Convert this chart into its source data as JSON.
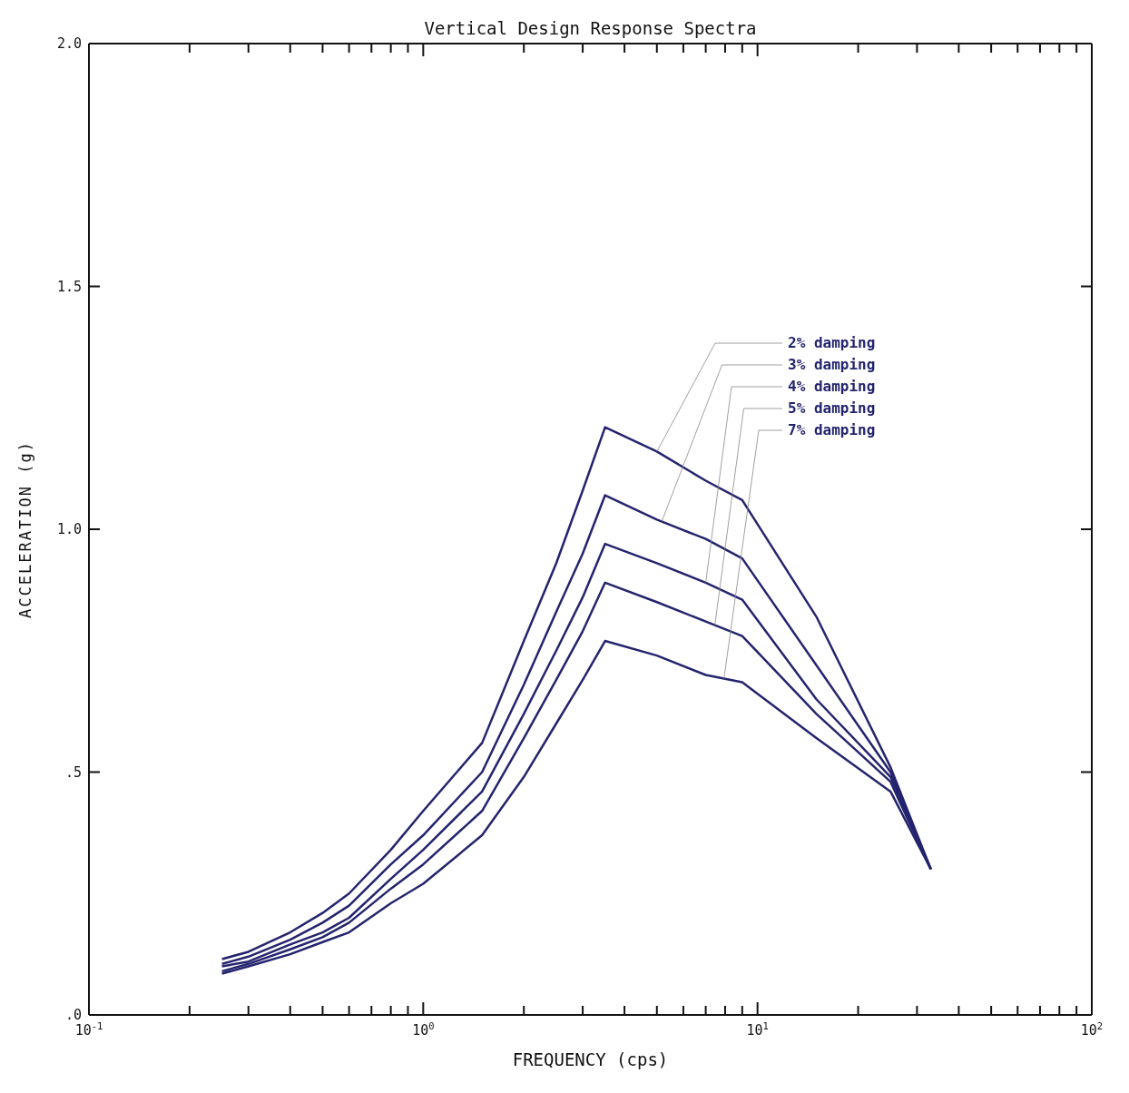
{
  "chart_data": {
    "type": "line",
    "title": "Vertical Design Response Spectra",
    "xlabel": "FREQUENCY (cps)",
    "ylabel": "ACCELERATION (g)",
    "log": "x",
    "line_style": "solid",
    "x": [
      0.25,
      0.3,
      0.4,
      0.5,
      0.6,
      0.8,
      1.0,
      1.5,
      2.0,
      2.5,
      3.0,
      3.5,
      5,
      7,
      9,
      15,
      25,
      33
    ],
    "xlim": [
      0.1,
      100
    ],
    "xticks": [
      {
        "value": 0.1,
        "label": "10$^{-1}$"
      },
      {
        "value": 0.2,
        "label": null
      },
      {
        "value": 0.3,
        "label": null
      },
      {
        "value": 0.4,
        "label": null
      },
      {
        "value": 0.5,
        "label": null
      },
      {
        "value": 0.6,
        "label": null
      },
      {
        "value": 0.7,
        "label": null
      },
      {
        "value": 0.8,
        "label": null
      },
      {
        "value": 0.9,
        "label": null
      },
      {
        "value": 1,
        "label": "10$^{0}$"
      },
      {
        "value": 2,
        "label": null
      },
      {
        "value": 3,
        "label": null
      },
      {
        "value": 4,
        "label": null
      },
      {
        "value": 5,
        "label": null
      },
      {
        "value": 6,
        "label": null
      },
      {
        "value": 7,
        "label": null
      },
      {
        "value": 8,
        "label": null
      },
      {
        "value": 9,
        "label": null
      },
      {
        "value": 10,
        "label": "10$^{1}$"
      },
      {
        "value": 20,
        "label": null
      },
      {
        "value": 30,
        "label": null
      },
      {
        "value": 40,
        "label": null
      },
      {
        "value": 50,
        "label": null
      },
      {
        "value": 60,
        "label": null
      },
      {
        "value": 70,
        "label": null
      },
      {
        "value": 80,
        "label": null
      },
      {
        "value": 90,
        "label": null
      },
      {
        "value": 100,
        "label": "10$^{2}$"
      }
    ],
    "ylim": [
      0,
      2.0
    ],
    "yticks": [
      {
        "value": 0,
        "label": ".0"
      },
      {
        "value": 0.5,
        "label": ".5"
      },
      {
        "value": 1.0,
        "label": "1.0"
      },
      {
        "value": 1.5,
        "label": "1.5"
      },
      {
        "value": 2.0,
        "label": "2.0"
      }
    ],
    "series": [
      {
        "name": "2% damping",
        "color": "#24246e",
        "values": [
          0.115,
          0.13,
          0.17,
          0.21,
          0.25,
          0.34,
          0.42,
          0.56,
          0.77,
          0.93,
          1.08,
          1.21,
          1.16,
          1.1,
          1.06,
          0.82,
          0.51,
          0.3
        ]
      },
      {
        "name": "3% damping",
        "color": "#24246e",
        "values": [
          0.105,
          0.12,
          0.155,
          0.19,
          0.225,
          0.31,
          0.37,
          0.5,
          0.68,
          0.83,
          0.95,
          1.07,
          1.02,
          0.98,
          0.94,
          0.72,
          0.5,
          0.3
        ]
      },
      {
        "name": "4% damping",
        "color": "#24246e",
        "values": [
          0.1,
          0.11,
          0.145,
          0.17,
          0.2,
          0.28,
          0.34,
          0.46,
          0.62,
          0.75,
          0.86,
          0.97,
          0.93,
          0.89,
          0.855,
          0.65,
          0.49,
          0.3
        ]
      },
      {
        "name": "5% damping",
        "color": "#24246e",
        "values": [
          0.09,
          0.105,
          0.135,
          0.16,
          0.19,
          0.26,
          0.31,
          0.42,
          0.57,
          0.69,
          0.79,
          0.89,
          0.85,
          0.81,
          0.78,
          0.62,
          0.48,
          0.3
        ]
      },
      {
        "name": "7% damping",
        "color": "#24246e",
        "values": [
          0.085,
          0.1,
          0.125,
          0.15,
          0.17,
          0.23,
          0.27,
          0.37,
          0.49,
          0.6,
          0.69,
          0.77,
          0.74,
          0.7,
          0.685,
          0.57,
          0.46,
          0.3
        ]
      }
    ]
  }
}
